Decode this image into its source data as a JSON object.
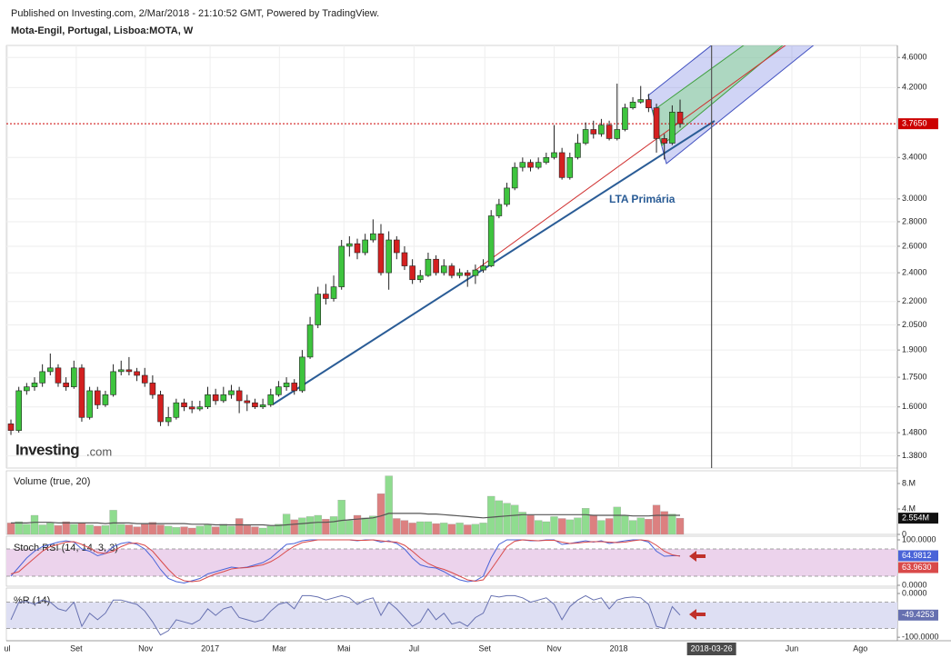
{
  "header": {
    "published": "Published on Investing.com, 2/Mar/2018 - 21:10:52 GMT, Powered by TradingView."
  },
  "logo": {
    "name": "Investing",
    "suffix": ".com"
  },
  "chart_data": [
    {
      "type": "candlestick",
      "title": "Mota-Engil, Portugal, Lisboa:MOTA, W",
      "annotations": [
        {
          "text": "LTA Primária"
        }
      ],
      "log": true,
      "ylim": [
        1.33,
        4.77
      ],
      "yticks": [
        {
          "value": 1.38,
          "label": "1.3800"
        },
        {
          "value": 1.48,
          "label": "1.4800"
        },
        {
          "value": 1.6,
          "label": "1.6000"
        },
        {
          "value": 1.75,
          "label": "1.7500"
        },
        {
          "value": 1.9,
          "label": "1.9000"
        },
        {
          "value": 2.05,
          "label": "2.0500"
        },
        {
          "value": 2.2,
          "label": "2.2000"
        },
        {
          "value": 2.4,
          "label": "2.4000"
        },
        {
          "value": 2.6,
          "label": "2.6000"
        },
        {
          "value": 2.8,
          "label": "2.8000"
        },
        {
          "value": 3.0,
          "label": "3.0000"
        },
        {
          "value": 3.4,
          "label": "3.4000"
        },
        {
          "value": 4.2,
          "label": "4.2000"
        },
        {
          "value": 4.6,
          "label": "4.6000"
        }
      ],
      "grid": true,
      "up_color": "#3ec43e",
      "down_color": "#d42020",
      "price_line": {
        "value": 3.765,
        "label": "3.7650",
        "color": "#cc0000"
      },
      "x": [
        1,
        2,
        3,
        4,
        5,
        6,
        7,
        8,
        9,
        10,
        11,
        12,
        13,
        14,
        15,
        16,
        17,
        18,
        19,
        20,
        21,
        22,
        23,
        24,
        25,
        26,
        27,
        28,
        29,
        30,
        31,
        32,
        33,
        34,
        35,
        36,
        37,
        38,
        39,
        40,
        41,
        42,
        43,
        44,
        45,
        46,
        47,
        48,
        49,
        50,
        51,
        52,
        53,
        54,
        55,
        56,
        57,
        58,
        59,
        60,
        61,
        62,
        63,
        64,
        65,
        66,
        67,
        68,
        69,
        70,
        71,
        72,
        73,
        74,
        75,
        76,
        77,
        78,
        79,
        80,
        81,
        82,
        83,
        84,
        85,
        86
      ],
      "ohlc": [
        [
          1.52,
          1.54,
          1.47,
          1.49
        ],
        [
          1.49,
          1.7,
          1.48,
          1.68
        ],
        [
          1.68,
          1.72,
          1.66,
          1.7
        ],
        [
          1.7,
          1.75,
          1.68,
          1.72
        ],
        [
          1.72,
          1.82,
          1.7,
          1.78
        ],
        [
          1.78,
          1.88,
          1.76,
          1.8
        ],
        [
          1.8,
          1.82,
          1.7,
          1.72
        ],
        [
          1.72,
          1.75,
          1.68,
          1.7
        ],
        [
          1.7,
          1.84,
          1.69,
          1.8
        ],
        [
          1.8,
          1.82,
          1.53,
          1.55
        ],
        [
          1.55,
          1.7,
          1.54,
          1.68
        ],
        [
          1.68,
          1.7,
          1.59,
          1.61
        ],
        [
          1.61,
          1.68,
          1.6,
          1.66
        ],
        [
          1.66,
          1.82,
          1.65,
          1.78
        ],
        [
          1.78,
          1.84,
          1.76,
          1.79
        ],
        [
          1.79,
          1.86,
          1.76,
          1.78
        ],
        [
          1.78,
          1.8,
          1.73,
          1.76
        ],
        [
          1.76,
          1.8,
          1.7,
          1.72
        ],
        [
          1.72,
          1.76,
          1.64,
          1.66
        ],
        [
          1.66,
          1.68,
          1.51,
          1.53
        ],
        [
          1.53,
          1.6,
          1.51,
          1.55
        ],
        [
          1.55,
          1.64,
          1.54,
          1.62
        ],
        [
          1.62,
          1.64,
          1.58,
          1.6
        ],
        [
          1.6,
          1.63,
          1.57,
          1.59
        ],
        [
          1.59,
          1.63,
          1.58,
          1.6
        ],
        [
          1.6,
          1.7,
          1.59,
          1.66
        ],
        [
          1.66,
          1.69,
          1.61,
          1.63
        ],
        [
          1.63,
          1.7,
          1.62,
          1.66
        ],
        [
          1.66,
          1.71,
          1.64,
          1.68
        ],
        [
          1.68,
          1.7,
          1.57,
          1.63
        ],
        [
          1.63,
          1.66,
          1.58,
          1.62
        ],
        [
          1.62,
          1.64,
          1.59,
          1.6
        ],
        [
          1.6,
          1.64,
          1.59,
          1.61
        ],
        [
          1.61,
          1.69,
          1.6,
          1.66
        ],
        [
          1.66,
          1.73,
          1.65,
          1.7
        ],
        [
          1.7,
          1.75,
          1.68,
          1.72
        ],
        [
          1.72,
          1.74,
          1.66,
          1.68
        ],
        [
          1.68,
          1.9,
          1.67,
          1.86
        ],
        [
          1.86,
          2.1,
          1.85,
          2.05
        ],
        [
          2.05,
          2.3,
          2.03,
          2.25
        ],
        [
          2.25,
          2.32,
          2.18,
          2.22
        ],
        [
          2.22,
          2.38,
          2.2,
          2.3
        ],
        [
          2.3,
          2.65,
          2.28,
          2.6
        ],
        [
          2.6,
          2.68,
          2.52,
          2.62
        ],
        [
          2.62,
          2.66,
          2.5,
          2.55
        ],
        [
          2.55,
          2.7,
          2.53,
          2.65
        ],
        [
          2.65,
          2.82,
          2.63,
          2.7
        ],
        [
          2.7,
          2.78,
          2.38,
          2.4
        ],
        [
          2.4,
          2.72,
          2.28,
          2.65
        ],
        [
          2.65,
          2.68,
          2.5,
          2.55
        ],
        [
          2.55,
          2.6,
          2.42,
          2.45
        ],
        [
          2.45,
          2.5,
          2.32,
          2.35
        ],
        [
          2.35,
          2.42,
          2.33,
          2.38
        ],
        [
          2.38,
          2.55,
          2.37,
          2.5
        ],
        [
          2.5,
          2.53,
          2.38,
          2.4
        ],
        [
          2.4,
          2.5,
          2.38,
          2.45
        ],
        [
          2.45,
          2.47,
          2.36,
          2.38
        ],
        [
          2.38,
          2.43,
          2.36,
          2.4
        ],
        [
          2.4,
          2.42,
          2.3,
          2.38
        ],
        [
          2.38,
          2.46,
          2.32,
          2.42
        ],
        [
          2.42,
          2.5,
          2.4,
          2.45
        ],
        [
          2.45,
          2.9,
          2.44,
          2.85
        ],
        [
          2.85,
          3.0,
          2.83,
          2.95
        ],
        [
          2.95,
          3.15,
          2.93,
          3.1
        ],
        [
          3.1,
          3.35,
          3.08,
          3.3
        ],
        [
          3.3,
          3.4,
          3.26,
          3.35
        ],
        [
          3.35,
          3.38,
          3.26,
          3.3
        ],
        [
          3.3,
          3.4,
          3.28,
          3.35
        ],
        [
          3.35,
          3.45,
          3.33,
          3.4
        ],
        [
          3.4,
          3.75,
          3.38,
          3.45
        ],
        [
          3.45,
          3.5,
          3.18,
          3.2
        ],
        [
          3.2,
          3.45,
          3.18,
          3.4
        ],
        [
          3.4,
          3.65,
          3.38,
          3.55
        ],
        [
          3.55,
          3.78,
          3.53,
          3.7
        ],
        [
          3.7,
          3.8,
          3.6,
          3.65
        ],
        [
          3.65,
          3.82,
          3.62,
          3.75
        ],
        [
          3.75,
          3.8,
          3.58,
          3.6
        ],
        [
          3.6,
          4.25,
          3.58,
          3.7
        ],
        [
          3.7,
          4.0,
          3.68,
          3.95
        ],
        [
          3.95,
          4.08,
          3.93,
          4.02
        ],
        [
          4.02,
          4.22,
          4.0,
          4.05
        ],
        [
          4.05,
          4.12,
          3.9,
          3.95
        ],
        [
          3.95,
          4.0,
          3.45,
          3.6
        ],
        [
          3.6,
          3.65,
          3.38,
          3.55
        ],
        [
          3.55,
          3.98,
          3.53,
          3.9
        ],
        [
          3.9,
          4.05,
          3.72,
          3.765
        ]
      ]
    },
    {
      "type": "bar",
      "title": "Volume (true, 20)",
      "ylim": [
        0,
        10
      ],
      "yticks": [
        {
          "value": 8,
          "label": "8.M"
        },
        {
          "value": 4,
          "label": "4.M"
        },
        0
      ],
      "up_color": "#8fdc8f",
      "down_color": "#dc8080",
      "values": [
        1.8,
        2.0,
        1.6,
        3.0,
        1.5,
        1.8,
        1.4,
        2.0,
        1.6,
        1.8,
        1.5,
        1.3,
        1.4,
        3.8,
        1.6,
        1.5,
        1.2,
        1.6,
        1.9,
        1.5,
        1.3,
        1.1,
        1.2,
        1.0,
        1.3,
        1.5,
        1.2,
        1.6,
        1.3,
        2.5,
        1.4,
        1.2,
        1.0,
        1.3,
        1.6,
        3.2,
        2.3,
        2.6,
        2.8,
        3.0,
        2.4,
        2.8,
        5.4,
        2.2,
        3.0,
        2.6,
        2.9,
        6.4,
        9.2,
        2.5,
        2.2,
        1.8,
        2.0,
        2.0,
        1.7,
        1.8,
        1.6,
        1.8,
        1.5,
        1.6,
        1.8,
        6.0,
        5.3,
        4.9,
        4.6,
        3.5,
        3.0,
        2.2,
        2.0,
        2.8,
        2.5,
        2.3,
        2.6,
        4.1,
        3.0,
        2.2,
        2.5,
        4.3,
        3.0,
        2.2,
        2.6,
        2.4,
        4.6,
        3.6,
        3.2,
        2.554
      ],
      "last_label": {
        "value": 2.554,
        "label": "2.554M"
      },
      "ma": {
        "color": "#555555",
        "values": [
          1.8,
          1.8,
          1.8,
          1.9,
          1.9,
          1.9,
          1.8,
          1.8,
          1.8,
          1.8,
          1.8,
          1.8,
          1.7,
          1.8,
          1.8,
          1.8,
          1.7,
          1.7,
          1.7,
          1.7,
          1.7,
          1.7,
          1.7,
          1.6,
          1.6,
          1.6,
          1.5,
          1.5,
          1.5,
          1.5,
          1.5,
          1.5,
          1.5,
          1.4,
          1.4,
          1.5,
          1.6,
          1.7,
          1.8,
          1.9,
          1.9,
          2.0,
          2.2,
          2.3,
          2.4,
          2.5,
          2.6,
          2.9,
          3.3,
          3.3,
          3.3,
          3.3,
          3.3,
          3.2,
          3.2,
          3.1,
          3.0,
          2.9,
          2.8,
          2.7,
          2.6,
          2.7,
          2.8,
          2.9,
          3.0,
          3.1,
          3.1,
          3.1,
          3.1,
          3.1,
          3.1,
          3.1,
          3.1,
          3.1,
          3.0,
          3.0,
          3.0,
          3.0,
          3.0,
          2.9,
          2.9,
          2.9,
          3.0,
          3.0,
          3.0,
          3.0
        ]
      }
    },
    {
      "type": "line",
      "title": "Stoch RSI (14, 14, 3, 3)",
      "ylim": [
        -2,
        108
      ],
      "yticks": [
        {
          "value": 100,
          "label": "100.0000"
        },
        {
          "value": 0,
          "label": "0.0000"
        }
      ],
      "bands": [
        20,
        80
      ],
      "band_color": "#ecd3ec",
      "series": [
        {
          "color": "#4a64d8",
          "values": [
            20,
            40,
            60,
            75,
            85,
            90,
            95,
            98,
            95,
            80,
            75,
            65,
            70,
            85,
            92,
            95,
            90,
            80,
            60,
            35,
            15,
            8,
            5,
            10,
            15,
            25,
            30,
            35,
            40,
            38,
            40,
            45,
            50,
            60,
            75,
            90,
            92,
            98,
            100,
            100,
            100,
            100,
            100,
            100,
            98,
            100,
            100,
            95,
            98,
            92,
            80,
            60,
            45,
            40,
            38,
            30,
            20,
            12,
            8,
            10,
            20,
            60,
            90,
            100,
            100,
            100,
            98,
            98,
            100,
            100,
            90,
            92,
            95,
            98,
            95,
            98,
            92,
            95,
            98,
            100,
            100,
            95,
            75,
            64,
            65,
            64.9812
          ],
          "last_label": {
            "value": 64.9812,
            "label": "64.9812"
          }
        },
        {
          "color": "#d94a4a",
          "values": [
            25,
            30,
            45,
            60,
            75,
            85,
            90,
            95,
            96,
            90,
            82,
            72,
            70,
            75,
            85,
            92,
            93,
            88,
            75,
            55,
            35,
            18,
            10,
            8,
            10,
            18,
            25,
            30,
            36,
            38,
            39,
            42,
            45,
            52,
            62,
            75,
            86,
            94,
            97,
            100,
            100,
            100,
            100,
            100,
            99,
            99,
            100,
            98,
            96,
            95,
            88,
            75,
            60,
            48,
            40,
            35,
            28,
            20,
            12,
            9,
            12,
            35,
            60,
            85,
            97,
            100,
            99,
            98,
            99,
            99,
            95,
            92,
            93,
            95,
            96,
            96,
            95,
            94,
            95,
            98,
            100,
            98,
            88,
            75,
            67,
            63.963
          ],
          "last_label": {
            "value": 63.963,
            "label": "63.9630"
          }
        }
      ]
    },
    {
      "type": "line",
      "title": "%R (14)",
      "ylim": [
        -108,
        12.5
      ],
      "yticks": [
        {
          "value": 0,
          "label": "0.0000"
        },
        {
          "value": -100,
          "label": "-100.0000"
        }
      ],
      "bands": [
        -80,
        -20
      ],
      "band_color": "#dedff3",
      "series": [
        {
          "color": "#6670b0",
          "values": [
            -60,
            -20,
            -18,
            -25,
            -15,
            -20,
            -35,
            -40,
            -20,
            -75,
            -45,
            -60,
            -45,
            -15,
            -15,
            -20,
            -25,
            -40,
            -65,
            -95,
            -85,
            -60,
            -65,
            -70,
            -60,
            -35,
            -50,
            -35,
            -30,
            -55,
            -60,
            -65,
            -60,
            -40,
            -25,
            -20,
            -35,
            -5,
            -5,
            -8,
            -15,
            -10,
            -5,
            -10,
            -25,
            -15,
            -10,
            -50,
            -20,
            -35,
            -55,
            -75,
            -65,
            -35,
            -60,
            -45,
            -70,
            -65,
            -75,
            -55,
            -45,
            -5,
            -8,
            -5,
            -5,
            -10,
            -20,
            -15,
            -10,
            -25,
            -60,
            -30,
            -15,
            -5,
            -15,
            -10,
            -35,
            -15,
            -10,
            -8,
            -10,
            -25,
            -75,
            -80,
            -30,
            -49.4253
          ],
          "last_label": {
            "value": -49.4253,
            "label": "-49.4253"
          }
        }
      ],
      "xlim": [
        0.42,
        113.6
      ],
      "xticks": [
        {
          "value": 0.54,
          "label": "ul"
        },
        {
          "value": 9.3,
          "label": "Set"
        },
        {
          "value": 18.1,
          "label": "Nov"
        },
        {
          "value": 26.3,
          "label": "2017"
        },
        {
          "value": 35.1,
          "label": "Mar"
        },
        {
          "value": 43.3,
          "label": "Mai"
        },
        {
          "value": 52.2,
          "label": "Jul"
        },
        {
          "value": 61.2,
          "label": "Set"
        },
        {
          "value": 70.0,
          "label": "Nov"
        },
        {
          "value": 78.2,
          "label": "2018"
        },
        {
          "value": 100.2,
          "label": "Jun"
        },
        {
          "value": 108.9,
          "label": "Ago"
        }
      ],
      "cursor": {
        "value": 90,
        "label": "2018-03-26"
      }
    }
  ]
}
